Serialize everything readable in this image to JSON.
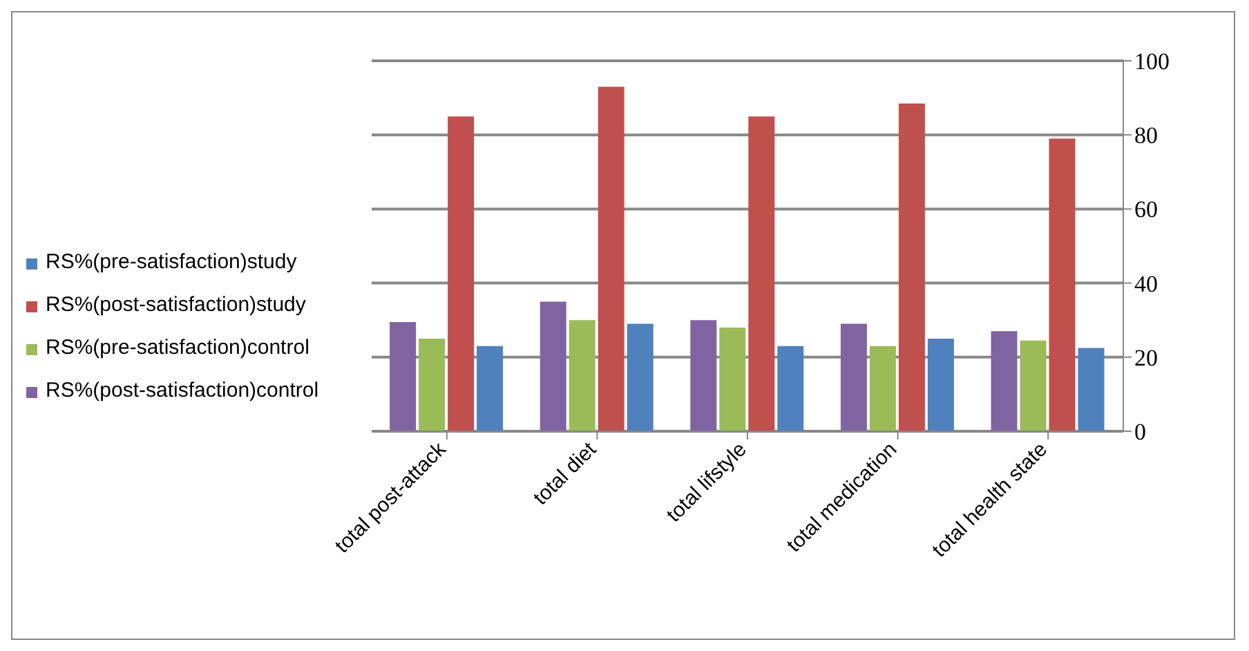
{
  "chart_data": {
    "type": "bar",
    "categories": [
      "total post-attack",
      "total diet",
      "total lifstyle",
      "total medication",
      "total health state"
    ],
    "series": [
      {
        "name": "RS%(pre-satisfaction)study",
        "color": "#4f81bd",
        "values": [
          23,
          29,
          23,
          25,
          22.5
        ]
      },
      {
        "name": "RS%(post-satisfaction)study",
        "color": "#c0504d",
        "values": [
          85,
          93,
          85,
          88.5,
          79
        ]
      },
      {
        "name": "RS%(pre-satisfaction)control",
        "color": "#9bbb59",
        "values": [
          25,
          30,
          28,
          23,
          24.5
        ]
      },
      {
        "name": "RS%(post-satisfaction)control",
        "color": "#8064a2",
        "values": [
          29.5,
          35,
          30,
          29,
          27
        ]
      }
    ],
    "ylim": [
      0,
      100
    ],
    "yticks": [
      0,
      20,
      40,
      60,
      80,
      100
    ],
    "grid": "y",
    "legend": "left"
  }
}
